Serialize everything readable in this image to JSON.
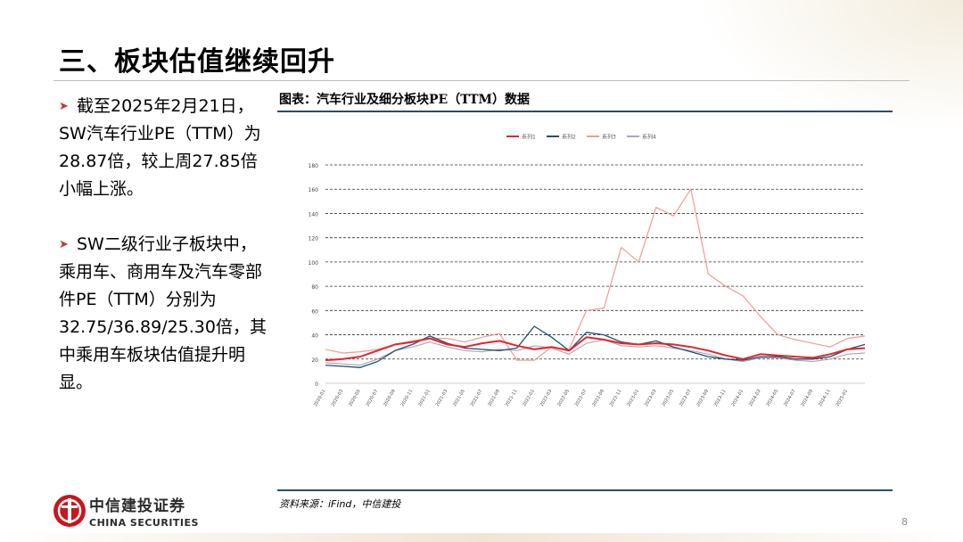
{
  "page": {
    "title": "三、板块估值继续回升",
    "page_number": "8",
    "chart_title": "图表：汽车行业及细分板块PE（TTM）数据",
    "source": "资料来源：iFind，中信建投",
    "logo": {
      "cn": "中信建投证券",
      "en": "CHINA SECURITIES"
    },
    "bullets": [
      "截至2025年2月21日，SW汽车行业PE（TTM）为28.87倍，较上周27.85倍小幅上涨。",
      "SW二级行业子板块中，乘用车、商用车及汽车零部件PE（TTM）分别为32.75/36.89/25.30倍，其中乘用车板块估值提升明显。"
    ]
  },
  "colors": {
    "accent_red": "#c0392b",
    "rule": "#2a4d69"
  },
  "chart_data": {
    "type": "line",
    "legend_position": "top",
    "grid": "horizontal dashed",
    "ylim": [
      0,
      180
    ],
    "y_ticks": [
      0,
      20,
      40,
      60,
      80,
      100,
      120,
      140,
      160,
      180
    ],
    "x_ticks": [
      "2020-01",
      "2020-03",
      "2020-05",
      "2020-07",
      "2020-09",
      "2020-11",
      "2021-01",
      "2021-03",
      "2021-05",
      "2021-07",
      "2021-09",
      "2021-11",
      "2022-01",
      "2022-03",
      "2022-05",
      "2022-07",
      "2022-09",
      "2022-11",
      "2023-01",
      "2023-03",
      "2023-05",
      "2023-07",
      "2023-09",
      "2023-11",
      "2024-01",
      "2024-03",
      "2024-05",
      "2024-07",
      "2024-09",
      "2024-11",
      "2025-01"
    ],
    "x": [
      "2020-01",
      "2020-03",
      "2020-05",
      "2020-07",
      "2020-09",
      "2020-11",
      "2021-01",
      "2021-03",
      "2021-05",
      "2021-07",
      "2021-09",
      "2021-11",
      "2022-01",
      "2022-03",
      "2022-05",
      "2022-07",
      "2022-09",
      "2022-11",
      "2023-01",
      "2023-03",
      "2023-05",
      "2023-07",
      "2023-09",
      "2023-11",
      "2024-01",
      "2024-03",
      "2024-05",
      "2024-07",
      "2024-09",
      "2024-11",
      "2025-01",
      "2025-02"
    ],
    "series": [
      {
        "name": "系列1",
        "color": "#e8232a",
        "width": 2.0,
        "values": [
          19,
          20,
          22,
          27,
          32,
          34,
          37,
          32,
          30,
          33,
          35,
          31,
          28,
          30,
          27,
          38,
          36,
          33,
          32,
          33,
          32,
          30,
          27,
          23,
          20,
          24,
          23,
          22,
          21,
          24,
          28,
          29
        ]
      },
      {
        "name": "系列2",
        "color": "#1d4f73",
        "width": 1.3,
        "values": [
          15,
          14,
          13,
          18,
          27,
          32,
          39,
          33,
          29,
          28,
          27,
          29,
          47,
          38,
          27,
          42,
          40,
          34,
          32,
          35,
          30,
          26,
          22,
          20,
          19,
          22,
          22,
          20,
          20,
          22,
          28,
          32
        ]
      },
      {
        "name": "系列3",
        "color": "#f29a96",
        "width": 1.2,
        "values": [
          28,
          25,
          26,
          28,
          32,
          35,
          37,
          37,
          34,
          38,
          41,
          19,
          19,
          30,
          28,
          60,
          62,
          112,
          100,
          145,
          138,
          160,
          90,
          80,
          72,
          55,
          40,
          36,
          33,
          30,
          37,
          39
        ]
      },
      {
        "name": "系列4",
        "color": "#a9a9b8",
        "width": 1.2,
        "values": [
          17,
          16,
          15,
          20,
          27,
          30,
          34,
          30,
          27,
          26,
          28,
          27,
          31,
          29,
          24,
          33,
          36,
          31,
          30,
          31,
          29,
          27,
          24,
          20,
          18,
          21,
          21,
          19,
          18,
          20,
          24,
          25
        ]
      }
    ]
  }
}
